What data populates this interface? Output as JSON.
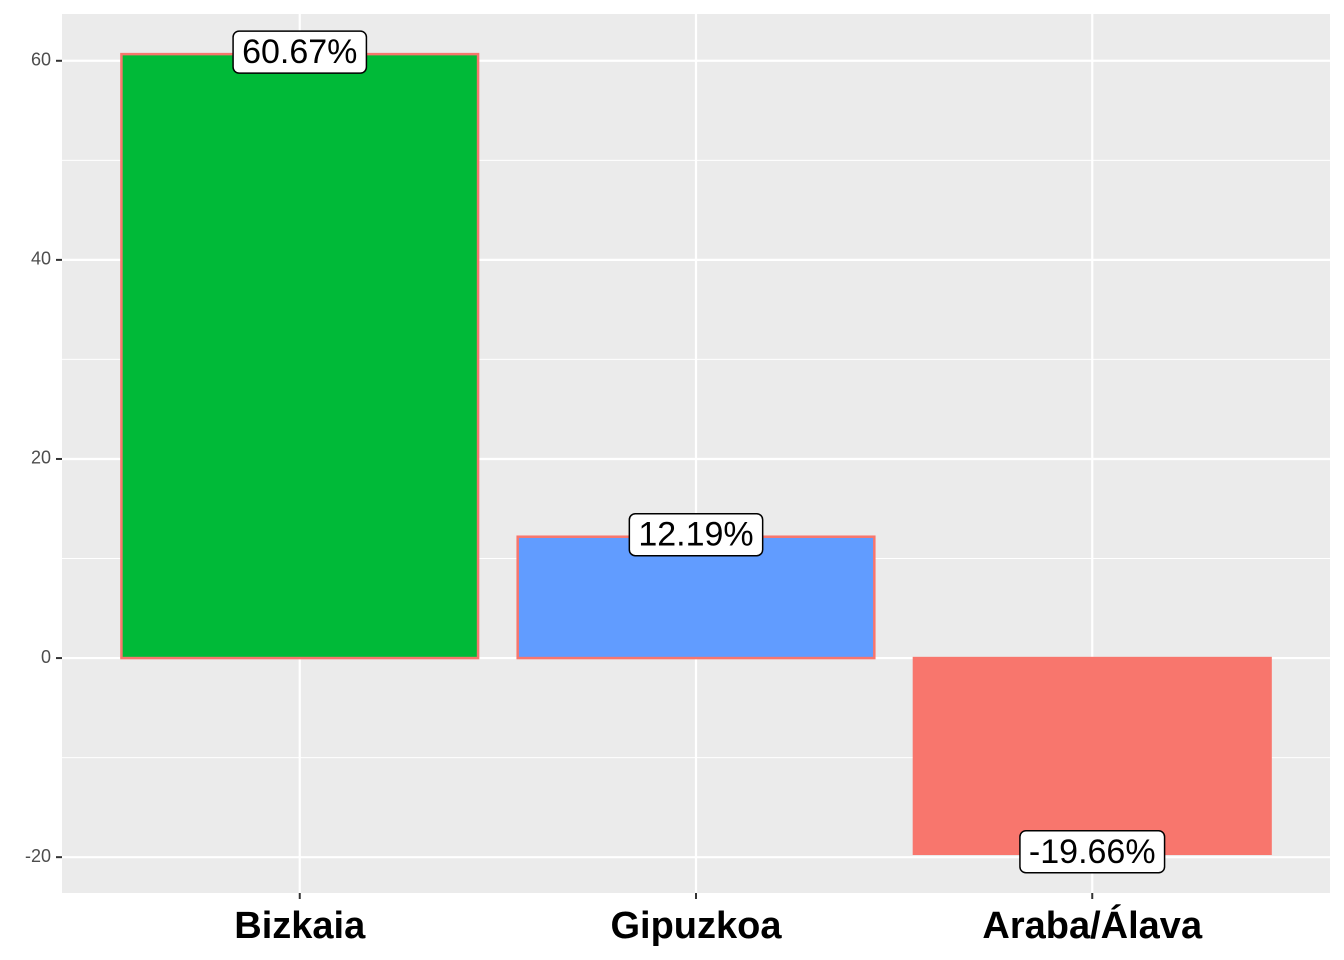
{
  "chart_data": {
    "type": "bar",
    "categories": [
      "Bizkaia",
      "Gipuzkoa",
      "Araba/Álava"
    ],
    "values": [
      60.67,
      12.19,
      -19.66
    ],
    "value_labels": [
      "60.67%",
      "12.19%",
      "-19.66%"
    ],
    "colors": [
      "#00BA38",
      "#619CFF",
      "#F8766D"
    ],
    "outline_color": "#F8766D",
    "ylim": [
      -23.6,
      64.7
    ],
    "yticks": [
      -20,
      0,
      20,
      40,
      60
    ],
    "grid": true
  }
}
